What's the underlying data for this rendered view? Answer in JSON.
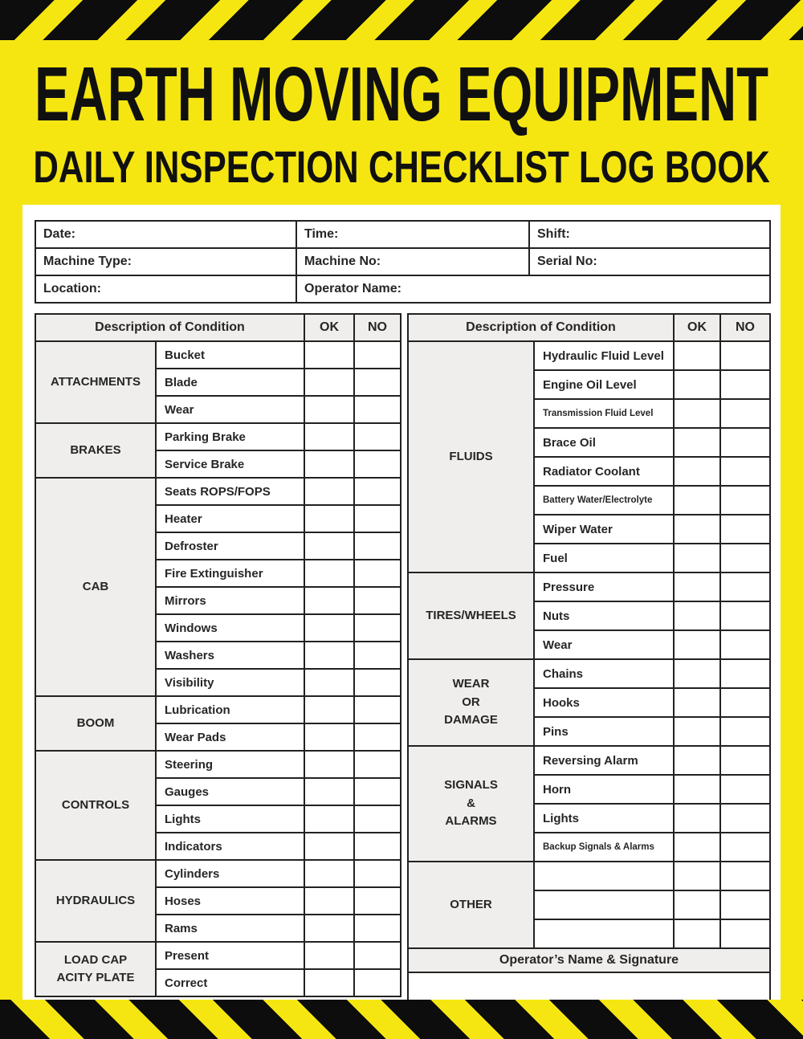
{
  "colors": {
    "hazard_yellow": "#f5e612",
    "hazard_black": "#0d0d0d",
    "panel_white": "#ffffff",
    "cell_gray": "#efeeec",
    "border_black": "#222222",
    "text_black": "#262626"
  },
  "title": {
    "line1": "EARTH MOVING EQUIPMENT",
    "line2": "DAILY INSPECTION CHECKLIST LOG BOOK"
  },
  "info_table": {
    "rows": [
      {
        "cells": [
          {
            "label": "Date:"
          },
          {
            "label": "Time:"
          },
          {
            "label": "Shift:"
          }
        ]
      },
      {
        "cells": [
          {
            "label": "Machine Type:"
          },
          {
            "label": "Machine No:"
          },
          {
            "label": "Serial No:"
          }
        ]
      },
      {
        "cells": [
          {
            "label": "Location:"
          },
          {
            "label": "Operator Name:",
            "colspan": 2
          }
        ]
      }
    ]
  },
  "checklists": {
    "left": {
      "header": "Description of Condition",
      "ok_label": "OK",
      "no_label": "NO",
      "sections": [
        {
          "category": "ATTACHMENTS",
          "items": [
            "Bucket",
            "Blade",
            "Wear"
          ]
        },
        {
          "category": "BRAKES",
          "items": [
            "Parking Brake",
            "Service Brake"
          ]
        },
        {
          "category": "CAB",
          "items": [
            "Seats ROPS/FOPS",
            "Heater",
            "Defroster",
            "Fire Extinguisher",
            "Mirrors",
            "Windows",
            "Washers",
            "Visibility"
          ]
        },
        {
          "category": "BOOM",
          "items": [
            "Lubrication",
            "Wear Pads"
          ]
        },
        {
          "category": "CONTROLS",
          "items": [
            "Steering",
            "Gauges",
            "Lights",
            "Indicators"
          ]
        },
        {
          "category": "HYDRAULICS",
          "items": [
            "Cylinders",
            "Hoses",
            "Rams"
          ]
        },
        {
          "category": "LOAD CAP\nACITY PLATE",
          "items": [
            "Present",
            "Correct"
          ]
        }
      ]
    },
    "right": {
      "header": "Description of Condition",
      "ok_label": "OK",
      "no_label": "NO",
      "sections": [
        {
          "category": "FLUIDS",
          "items": [
            "Hydraulic Fluid Level",
            "Engine Oil Level",
            {
              "label": "Transmission Fluid Level",
              "small": true
            },
            "Brace Oil",
            "Radiator Coolant",
            {
              "label": "Battery Water/Electrolyte",
              "small": true
            },
            "Wiper Water",
            "Fuel"
          ]
        },
        {
          "category": "TIRES/WHEELS",
          "items": [
            "Pressure",
            "Nuts",
            "Wear"
          ]
        },
        {
          "category": "WEAR\nOR\nDAMAGE",
          "items": [
            "Chains",
            "Hooks",
            "Pins"
          ]
        },
        {
          "category": "SIGNALS\n&\nALARMS",
          "items": [
            "Reversing Alarm",
            "Horn",
            "Lights",
            {
              "label": "Backup Signals &  Alarms",
              "small": true
            }
          ]
        },
        {
          "category": "OTHER",
          "items": [
            "",
            "",
            ""
          ]
        }
      ],
      "footer_label": "Operator’s Name & Signature"
    }
  }
}
